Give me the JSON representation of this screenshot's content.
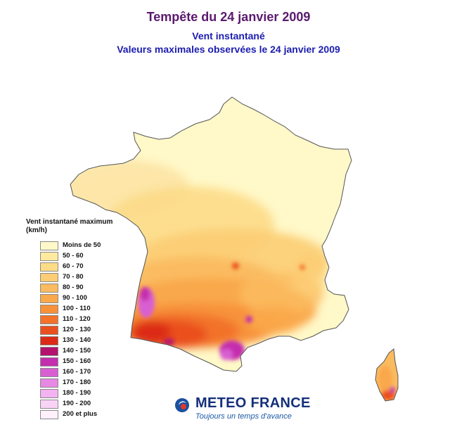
{
  "header": {
    "title": "Tempête du 24 janvier 2009",
    "subtitle_line1": "Vent instantané",
    "subtitle_line2": "Valeurs maximales observées le 24 janvier 2009"
  },
  "legend": {
    "title": "Vent instantané maximum (km/h)",
    "classes": [
      {
        "label": "Moins de 50",
        "color": "#fff8c8"
      },
      {
        "label": "50 - 60",
        "color": "#ffeaa0"
      },
      {
        "label": "60 - 70",
        "color": "#fddc88"
      },
      {
        "label": "70 - 80",
        "color": "#fccd74"
      },
      {
        "label": "80 - 90",
        "color": "#fbbb60"
      },
      {
        "label": "90 - 100",
        "color": "#f9a84c"
      },
      {
        "label": "100 - 110",
        "color": "#f7923a"
      },
      {
        "label": "110 - 120",
        "color": "#f2722a"
      },
      {
        "label": "120 - 130",
        "color": "#ea4f1e"
      },
      {
        "label": "130 - 140",
        "color": "#dc2a16"
      },
      {
        "label": "140 - 150",
        "color": "#b4126e"
      },
      {
        "label": "150 - 160",
        "color": "#c42eae"
      },
      {
        "label": "160 - 170",
        "color": "#d85ed2"
      },
      {
        "label": "170 - 180",
        "color": "#e788e3"
      },
      {
        "label": "180 - 190",
        "color": "#f3b2f0"
      },
      {
        "label": "190 - 200",
        "color": "#f9d3f6"
      },
      {
        "label": "200 et plus",
        "color": "#fff0fc"
      }
    ]
  },
  "map": {
    "region": "France métropolitaine et Corse",
    "background_color": "#fff8c8",
    "outline_color": "#555555"
  },
  "logo": {
    "name": "METEO FRANCE",
    "tagline": "Toujours un temps d'avance"
  }
}
